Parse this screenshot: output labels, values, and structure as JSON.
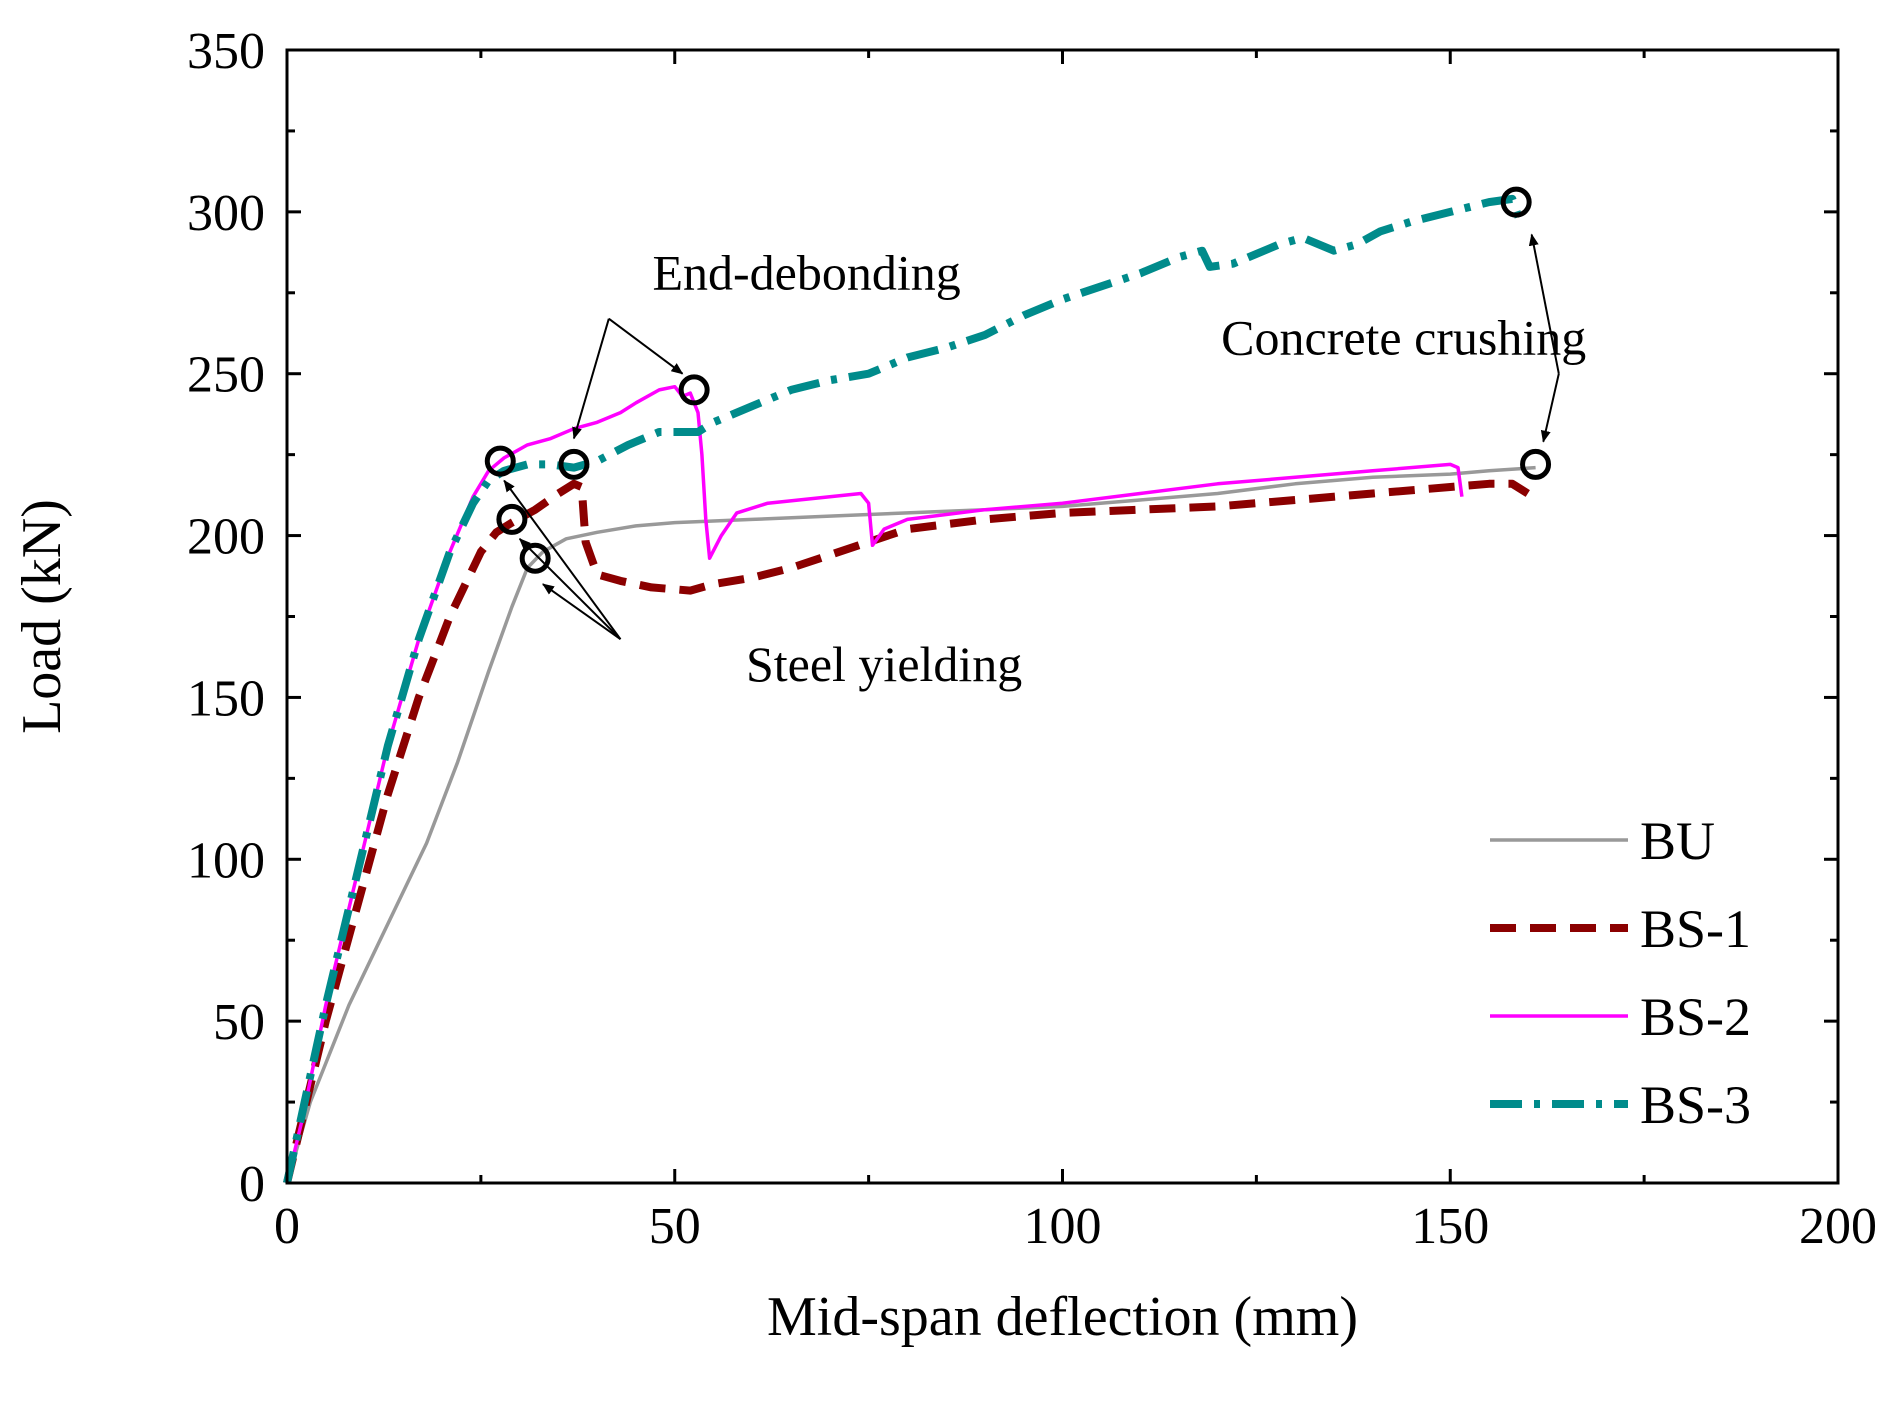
{
  "chart_data": {
    "type": "line",
    "title": "",
    "xlabel": "Mid-span deflection (mm)",
    "ylabel": "Load (kN)",
    "xlim": [
      0,
      200
    ],
    "ylim": [
      0,
      350
    ],
    "xticks": [
      0,
      50,
      100,
      150,
      200
    ],
    "yticks": [
      0,
      50,
      100,
      150,
      200,
      250,
      300,
      350
    ],
    "xtick_labels": [
      "0",
      "50",
      "100",
      "150",
      "200"
    ],
    "ytick_labels": [
      "0",
      "50",
      "100",
      "150",
      "200",
      "250",
      "300",
      "350"
    ],
    "grid": false,
    "legend_position": "bottom-right",
    "series": [
      {
        "name": "BU",
        "color": "#999999",
        "style": "solid",
        "points": [
          [
            0,
            0
          ],
          [
            3,
            25
          ],
          [
            8,
            55
          ],
          [
            13,
            80
          ],
          [
            18,
            105
          ],
          [
            22,
            130
          ],
          [
            26,
            158
          ],
          [
            29,
            178
          ],
          [
            31,
            190
          ],
          [
            33,
            195
          ],
          [
            36,
            199
          ],
          [
            40,
            201
          ],
          [
            45,
            203
          ],
          [
            50,
            204
          ],
          [
            60,
            205
          ],
          [
            70,
            206
          ],
          [
            80,
            207
          ],
          [
            90,
            208
          ],
          [
            100,
            209
          ],
          [
            110,
            211
          ],
          [
            120,
            213
          ],
          [
            130,
            216
          ],
          [
            140,
            218
          ],
          [
            150,
            219
          ],
          [
            155,
            220
          ],
          [
            161,
            221
          ]
        ]
      },
      {
        "name": "BS-1",
        "color": "#8B0000",
        "style": "dashed",
        "points": [
          [
            0,
            0
          ],
          [
            2,
            20
          ],
          [
            5,
            50
          ],
          [
            9,
            85
          ],
          [
            13,
            120
          ],
          [
            17,
            150
          ],
          [
            21,
            175
          ],
          [
            25,
            195
          ],
          [
            27,
            201
          ],
          [
            29,
            204
          ],
          [
            32,
            208
          ],
          [
            35,
            213
          ],
          [
            37,
            216
          ],
          [
            38,
            215
          ],
          [
            38.5,
            198
          ],
          [
            40,
            188
          ],
          [
            43,
            186
          ],
          [
            47,
            184
          ],
          [
            52,
            183
          ],
          [
            55,
            185
          ],
          [
            60,
            187
          ],
          [
            65,
            190
          ],
          [
            70,
            194
          ],
          [
            75,
            198
          ],
          [
            80,
            202
          ],
          [
            90,
            205
          ],
          [
            100,
            207
          ],
          [
            110,
            208
          ],
          [
            120,
            209
          ],
          [
            130,
            211
          ],
          [
            140,
            213
          ],
          [
            150,
            215
          ],
          [
            155,
            216
          ],
          [
            158,
            216
          ],
          [
            160,
            213
          ]
        ]
      },
      {
        "name": "BS-2",
        "color": "#FF00FF",
        "style": "solid",
        "points": [
          [
            0,
            0
          ],
          [
            2,
            20
          ],
          [
            5,
            55
          ],
          [
            9,
            95
          ],
          [
            13,
            135
          ],
          [
            17,
            168
          ],
          [
            21,
            195
          ],
          [
            24,
            212
          ],
          [
            26,
            220
          ],
          [
            28,
            224
          ],
          [
            31,
            228
          ],
          [
            34,
            230
          ],
          [
            37,
            233
          ],
          [
            40,
            235
          ],
          [
            43,
            238
          ],
          [
            45,
            241
          ],
          [
            48,
            245
          ],
          [
            50,
            246
          ],
          [
            51,
            243
          ],
          [
            52,
            244
          ],
          [
            53,
            238
          ],
          [
            53.5,
            225
          ],
          [
            54,
            205
          ],
          [
            54.5,
            193
          ],
          [
            56,
            200
          ],
          [
            58,
            207
          ],
          [
            62,
            210
          ],
          [
            66,
            211
          ],
          [
            70,
            212
          ],
          [
            74,
            213
          ],
          [
            75,
            210
          ],
          [
            75.5,
            197
          ],
          [
            77,
            202
          ],
          [
            80,
            205
          ],
          [
            90,
            208
          ],
          [
            100,
            210
          ],
          [
            110,
            213
          ],
          [
            120,
            216
          ],
          [
            130,
            218
          ],
          [
            140,
            220
          ],
          [
            150,
            222
          ],
          [
            151,
            221
          ],
          [
            151.5,
            212
          ]
        ]
      },
      {
        "name": "BS-3",
        "color": "#008B8B",
        "style": "dashdot",
        "points": [
          [
            0,
            0
          ],
          [
            2,
            22
          ],
          [
            5,
            55
          ],
          [
            9,
            95
          ],
          [
            13,
            135
          ],
          [
            17,
            168
          ],
          [
            21,
            195
          ],
          [
            24,
            210
          ],
          [
            26,
            217
          ],
          [
            28,
            220
          ],
          [
            31,
            222
          ],
          [
            34,
            222
          ],
          [
            37,
            221
          ],
          [
            40,
            223
          ],
          [
            44,
            228
          ],
          [
            48,
            232
          ],
          [
            51,
            232
          ],
          [
            53,
            232
          ],
          [
            55,
            235
          ],
          [
            60,
            240
          ],
          [
            65,
            245
          ],
          [
            70,
            248
          ],
          [
            75,
            250
          ],
          [
            80,
            255
          ],
          [
            85,
            258
          ],
          [
            90,
            262
          ],
          [
            95,
            268
          ],
          [
            100,
            273
          ],
          [
            105,
            277
          ],
          [
            110,
            281
          ],
          [
            115,
            286
          ],
          [
            118,
            288
          ],
          [
            119,
            283
          ],
          [
            122,
            284
          ],
          [
            125,
            287
          ],
          [
            128,
            290
          ],
          [
            131,
            292
          ],
          [
            135,
            288
          ],
          [
            138,
            290
          ],
          [
            141,
            294
          ],
          [
            145,
            297
          ],
          [
            150,
            300
          ],
          [
            155,
            303
          ],
          [
            158,
            304
          ],
          [
            159,
            297
          ]
        ]
      }
    ],
    "markers": [
      {
        "x": 27.5,
        "y": 223
      },
      {
        "x": 29,
        "y": 205
      },
      {
        "x": 32,
        "y": 193
      },
      {
        "x": 37,
        "y": 222
      },
      {
        "x": 52.5,
        "y": 245
      },
      {
        "x": 158.5,
        "y": 303
      },
      {
        "x": 161,
        "y": 222
      }
    ],
    "annotations": [
      {
        "text": "End-debonding",
        "anchor": [
          67,
          276
        ],
        "arrow_start": [
          41.5,
          267
        ],
        "targets": [
          [
            37,
            230
          ],
          [
            51,
            250
          ]
        ]
      },
      {
        "text": "Steel yielding",
        "anchor": [
          77,
          155
        ],
        "arrow_start": [
          43,
          168
        ],
        "targets": [
          [
            28,
            217
          ],
          [
            30,
            199
          ],
          [
            33,
            185
          ]
        ]
      },
      {
        "text": "Concrete crushing",
        "anchor": [
          144,
          256
        ],
        "arrow_start": [
          164,
          250
        ],
        "targets": [
          [
            160.5,
            293
          ],
          [
            162,
            229
          ]
        ]
      }
    ]
  }
}
